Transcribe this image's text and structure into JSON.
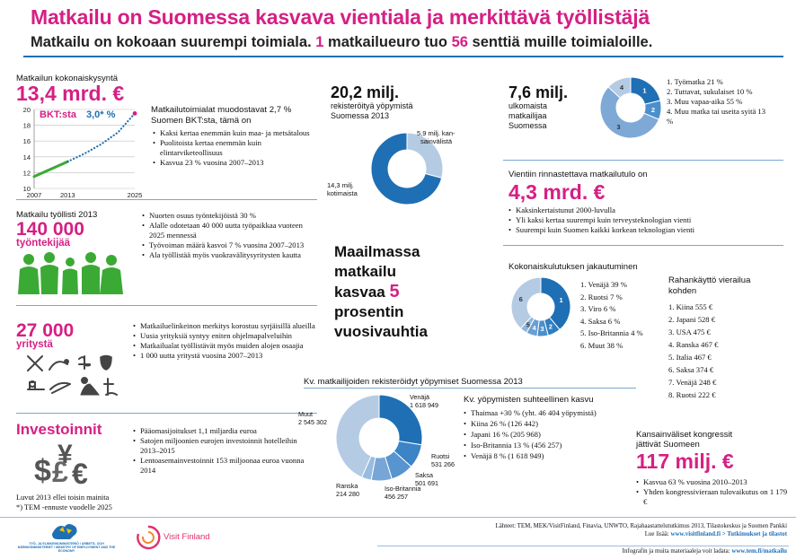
{
  "header": {
    "title": "Matkailu on Suomessa kasvava vientiala ja merkittävä työllistäjä",
    "subtitle_a": "Matkailu on kokoaan suurempi toimiala.",
    "subtitle_n1": "1",
    "subtitle_b": "matkailueuro tuo",
    "subtitle_n2": "56",
    "subtitle_c": "senttiä muille toimialoille."
  },
  "demand": {
    "label": "Matkailun kokonaiskysyntä",
    "value": "13,4 mrd. €",
    "gdp_label": "BKT:sta",
    "gdp_value": "3,0* %",
    "chart_data": {
      "type": "line",
      "x_ticks": [
        "2007",
        "2013",
        "2025"
      ],
      "y_ticks": [
        "10",
        "12",
        "14",
        "16",
        "18",
        "20"
      ],
      "ylim": [
        10,
        20
      ],
      "series": [
        {
          "points": [
            [
              2007,
              11.5
            ],
            [
              2013,
              13.4
            ]
          ],
          "style": "solid",
          "color": "#3aaa35"
        },
        {
          "points": [
            [
              2013,
              13.4
            ],
            [
              2016,
              14.4
            ],
            [
              2019,
              15.6
            ],
            [
              2022,
              17.1
            ],
            [
              2025,
              19.5
            ]
          ],
          "style": "dotted",
          "color": "#1f6fb4"
        }
      ],
      "markers": [
        [
          2025,
          19.5
        ]
      ]
    },
    "heading": "Matkailutoimialat muodostavat 2,7 % Suomen BKT:sta, tämä on",
    "bullets": [
      "Kaksi kertaa enemmän kuin maa- ja metsätalous",
      "Puolitoista kertaa enemmän kuin elintarviketeollisuus",
      "Kasvua 23 % vuosina 2007–2013"
    ]
  },
  "employment": {
    "label": "Matkailu työllisti 2013",
    "value": "140 000",
    "unit": "työntekijää",
    "bullets": [
      "Nuorten osuus työntekijöistä 30 %",
      "Alalle odotetaan 40 000 uutta työpaikkaa vuoteen 2025 mennessä",
      "Työvoiman määrä kasvoi 7 % vuosina 2007–2013",
      "Ala työllistää myös vuokravälitysyritysten kautta"
    ]
  },
  "companies": {
    "value": "27 000",
    "unit": "yritystä",
    "bullets": [
      "Matkailuelinkeinon merkitys korostuu syrjäisillä alueilla",
      "Uusia yrityksiä syntyy eniten ohjelmapalveluihin",
      "Matkailualat työllistävät myös muiden alojen osaajia",
      "1 000 uutta yritystä vuosina 2007–2013"
    ]
  },
  "investments": {
    "label": "Investoinnit",
    "bullets": [
      "Pääomasijoitukset 1,1 miljardia euroa",
      "Satojen miljoonien eurojen investoinnit hotelleihin 2013–2015",
      "Lentoasemainvestoinnit 153 miljoonaa euroa vuonna 2014"
    ],
    "footnote1": "Luvut 2013 ellei toisin mainita",
    "footnote2": "*) TEM -ennuste vuodelle 2025"
  },
  "nights": {
    "value": "20,2 milj.",
    "label": "rekisteröityä yöpymistä Suomessa 2013",
    "chart_data": {
      "type": "pie",
      "slices": [
        {
          "label": "5,9 milj. kansainvälistä",
          "value": 5.9,
          "color": "#b5cbe4"
        },
        {
          "label": "14,3 milj. kotimaista",
          "value": 14.3,
          "color": "#1f6fb4"
        }
      ]
    }
  },
  "travellers": {
    "value": "7,6 milj.",
    "label": "ulkomaista matkailijaa Suomessa",
    "chart_data": {
      "type": "pie",
      "slices": [
        {
          "label": "1",
          "value": 21,
          "color": "#1f6fb4"
        },
        {
          "label": "2",
          "value": 10,
          "color": "#4b8fcc"
        },
        {
          "label": "3",
          "value": 55,
          "color": "#7ea9d6"
        },
        {
          "label": "4",
          "value": 13,
          "color": "#b5cbe4"
        }
      ]
    },
    "legend": [
      "1. Työmatka 21 %",
      "2. Tuttavat, sukulaiset 10 %",
      "3. Muu vapaa-aika 55 %",
      "4. Muu matka tai useita syitä 13 %"
    ]
  },
  "export": {
    "label": "Vientiin rinnastettava matkailutulo on",
    "value": "4,3 mrd. €",
    "bullets": [
      "Kaksinkertaistunut 2000-luvulla",
      "Yli kaksi kertaa suurempi kuin terveysteknologian vienti",
      "Suurempi kuin Suomen kaikki korkean teknologian vienti"
    ]
  },
  "world": {
    "line1": "Maailmassa",
    "line2": "matkailu",
    "line3a": "kasvaa",
    "line3b": "5",
    "line4": "prosentin",
    "line5": "vuosivauhtia"
  },
  "spending": {
    "label": "Kokonaiskulutuksen jakautuminen",
    "chart_data": {
      "type": "pie",
      "slices": [
        {
          "label": "1",
          "value": 39,
          "color": "#1f6fb4"
        },
        {
          "label": "2",
          "value": 7,
          "color": "#2f7ec2"
        },
        {
          "label": "3",
          "value": 6,
          "color": "#4b8fcc"
        },
        {
          "label": "4",
          "value": 6,
          "color": "#6a9fd3"
        },
        {
          "label": "5",
          "value": 4,
          "color": "#8fb6de"
        },
        {
          "label": "6",
          "value": 38,
          "color": "#b5cbe4"
        }
      ]
    },
    "legend": [
      "1. Venäjä 39 %",
      "2. Ruotsi 7 %",
      "3. Viro 6 %",
      "4. Saksa 6 %",
      "5. Iso-Britannia 4 %",
      "6. Muut 38 %"
    ]
  },
  "per_visitor": {
    "label": "Rahankäyttö vierailua kohden",
    "items": [
      "1. Kiina 555 €",
      "2. Japani 528 €",
      "3. USA 475 €",
      "4. Ranska 467 €",
      "5. Italia 467 €",
      "6. Saksa 374 €",
      "7. Venäjä 248 €",
      "8. Ruotsi 222 €"
    ]
  },
  "foreign_nights": {
    "label": "Kv. matkailijoiden rekisteröidyt yöpymiset Suomessa 2013",
    "chart_data": {
      "type": "pie",
      "slices": [
        {
          "label": "Venäjä",
          "value": 1618949,
          "display": "1 618 949",
          "color": "#1f6fb4"
        },
        {
          "label": "Ruotsi",
          "value": 531266,
          "display": "531 266",
          "color": "#3b84c6"
        },
        {
          "label": "Saksa",
          "value": 501691,
          "display": "501 691",
          "color": "#5894cf"
        },
        {
          "label": "Iso-Britannia",
          "value": 456257,
          "display": "456 257",
          "color": "#77a6d6"
        },
        {
          "label": "Ranska",
          "value": 214280,
          "display": "214 280",
          "color": "#98bbe0"
        },
        {
          "label": "Muut",
          "value": 2545302,
          "display": "2 545 302",
          "color": "#b5cbe4"
        }
      ]
    }
  },
  "relative": {
    "label": "Kv. yöpymisten suhteellinen kasvu",
    "bullets": [
      "Thaimaa +30 % (yht. 46 404 yöpymistä)",
      "Kiina 26 % (126 442)",
      "Japani 16 % (205 968)",
      "Iso-Britannia 13 % (456 257)",
      "Venäjä 8 % (1 618 949)"
    ]
  },
  "congress": {
    "label": "Kansainväliset kongressit jättivät Suomeen",
    "value": "117 milj. €",
    "bullets": [
      "Kasvua 63 % vuosina 2010–2013",
      "Yhden kongressivieraan tulovaikutus on 1 179 €"
    ]
  },
  "footer": {
    "sources": "Lähteet: TEM, MEK/VisitFinland, Finavia, UNWTO, Rajahaastattelututkimus 2013, Tilastokeskus ja Suomen Pankki",
    "read_more_label": "Lue lisää:",
    "read_more_link": "www.visitfinland.fi > Tutkimukset ja tilastot",
    "download_label": "Infografin ja muita materiaaleja voit ladata:",
    "download_link": "www.tem.fi/matkailu",
    "ministry_logo_text": "TYÖ- JA ELINKEINOMINISTERIÖ / ARBETS- OCH NÄRINGSMINISTERIET / MINISTRY OF EMPLOYMENT AND THE ECONOMY",
    "visitfinland_logo": "Visit Finland"
  }
}
